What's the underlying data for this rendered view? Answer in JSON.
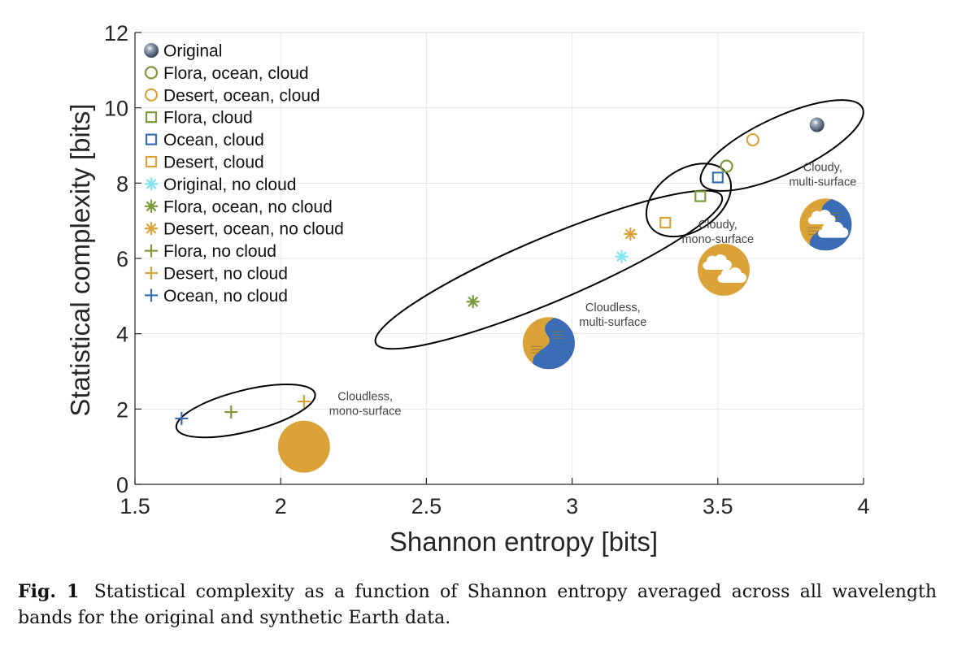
{
  "chart_data": {
    "type": "scatter",
    "xlabel": "Shannon entropy [bits]",
    "ylabel": "Statistical complexity [bits]",
    "xlim": [
      1.5,
      4
    ],
    "ylim": [
      0,
      12
    ],
    "xticks": [
      "1.5",
      "2",
      "2.5",
      "3",
      "3.5",
      "4"
    ],
    "yticks": [
      "0",
      "2",
      "4",
      "6",
      "8",
      "10",
      "12"
    ],
    "grid": true,
    "legend_position": "top-left",
    "series": [
      {
        "name": "Original",
        "marker": "earth",
        "color": "#5a6f8a",
        "x": 3.84,
        "y": 9.55
      },
      {
        "name": "Flora, ocean, cloud",
        "marker": "circle",
        "color": "#7e9a3c",
        "x": 3.53,
        "y": 8.45
      },
      {
        "name": "Desert, ocean, cloud",
        "marker": "circle",
        "color": "#dba238",
        "x": 3.62,
        "y": 9.15
      },
      {
        "name": "Flora, cloud",
        "marker": "square",
        "color": "#7e9a3c",
        "x": 3.44,
        "y": 7.65
      },
      {
        "name": "Ocean, cloud",
        "marker": "square",
        "color": "#3a6db5",
        "x": 3.5,
        "y": 8.15
      },
      {
        "name": "Desert, cloud",
        "marker": "square",
        "color": "#dba238",
        "x": 3.32,
        "y": 6.95
      },
      {
        "name": "Original, no cloud",
        "marker": "asterisk",
        "color": "#7fe3f0",
        "x": 3.17,
        "y": 6.05
      },
      {
        "name": "Flora, ocean, no cloud",
        "marker": "asterisk",
        "color": "#7e9a3c",
        "x": 2.66,
        "y": 4.85
      },
      {
        "name": "Desert, ocean, no cloud",
        "marker": "asterisk",
        "color": "#dba238",
        "x": 3.2,
        "y": 6.65
      },
      {
        "name": "Flora, no cloud",
        "marker": "plus",
        "color": "#7e9a3c",
        "x": 1.83,
        "y": 1.92
      },
      {
        "name": "Desert, no cloud",
        "marker": "plus",
        "color": "#dba238",
        "x": 2.08,
        "y": 2.2
      },
      {
        "name": "Ocean, no cloud",
        "marker": "plus",
        "color": "#3a6db5",
        "x": 1.66,
        "y": 1.75
      }
    ],
    "ellipses": [
      {
        "cx": 1.88,
        "cy": 1.95,
        "rx": 0.245,
        "ry": 0.55,
        "angle": -14
      },
      {
        "cx": 2.92,
        "cy": 5.7,
        "rx": 0.645,
        "ry": 0.85,
        "angle": -23
      },
      {
        "cx": 3.4,
        "cy": 7.55,
        "rx": 0.16,
        "ry": 0.82,
        "angle": -34
      },
      {
        "cx": 3.72,
        "cy": 9.0,
        "rx": 0.305,
        "ry": 0.75,
        "angle": -25
      }
    ],
    "annotations": [
      {
        "lines": [
          "Cloudless,",
          "mono-surface"
        ],
        "x": 2.29,
        "y": 2.23
      },
      {
        "lines": [
          "Cloudless,",
          "multi-surface"
        ],
        "x": 3.14,
        "y": 4.6
      },
      {
        "lines": [
          "Cloudy,",
          "mono-surface"
        ],
        "x": 3.5,
        "y": 6.8
      },
      {
        "lines": [
          "Cloudy,",
          "multi-surface"
        ],
        "x": 3.86,
        "y": 8.32
      }
    ],
    "icons": [
      {
        "name": "desert-disc-icon",
        "style": "desert",
        "x": 2.08,
        "y": 1.0
      },
      {
        "name": "river-disc-icon",
        "style": "river",
        "x": 2.92,
        "y": 3.75
      },
      {
        "name": "cloudy-desert-disc-icon",
        "style": "cloudy-desert",
        "x": 3.52,
        "y": 5.7
      },
      {
        "name": "cloudy-river-disc-icon",
        "style": "cloudy-river",
        "x": 3.87,
        "y": 6.9
      }
    ]
  },
  "caption": {
    "label": "Fig. 1",
    "text": "Statistical complexity as a function of Shannon entropy averaged across all wavelength bands for the original and synthetic Earth data."
  },
  "colors": {
    "flora": "#7e9a3c",
    "desert": "#dba238",
    "ocean": "#3a6db5",
    "cyan": "#7fe3f0",
    "grid": "#e6e6e6",
    "axis": "#262626"
  }
}
